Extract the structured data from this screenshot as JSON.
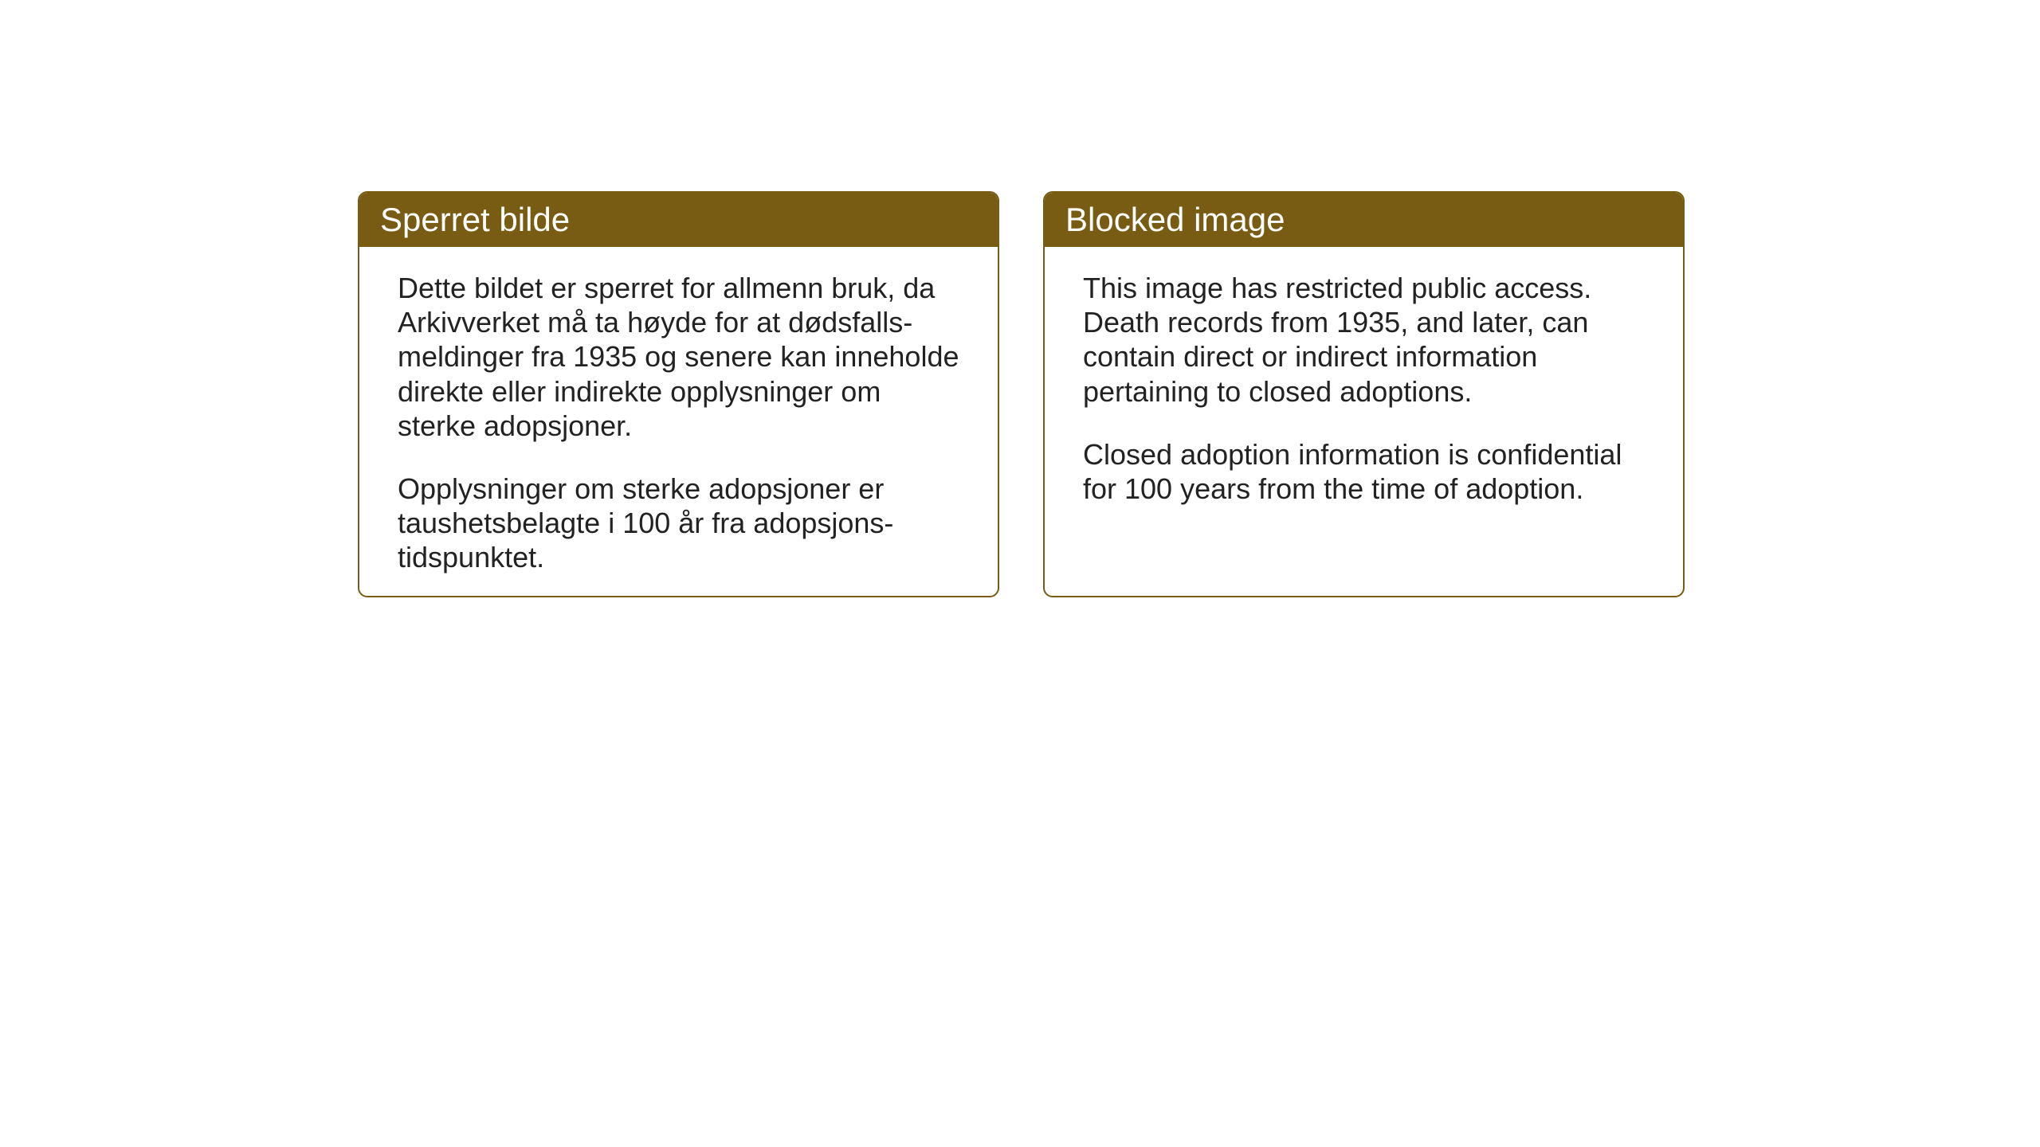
{
  "panels": {
    "left": {
      "title": "Sperret bilde",
      "paragraph1": "Dette bildet er sperret for allmenn bruk, da Arkivverket må ta høyde for at dødsfalls-meldinger fra 1935 og senere kan inneholde direkte eller indirekte opplysninger om sterke adopsjoner.",
      "paragraph2": "Opplysninger om sterke adopsjoner er taushetsbelagte i 100 år fra adopsjons-tidspunktet."
    },
    "right": {
      "title": "Blocked image",
      "paragraph1": "This image has restricted public access. Death records from 1935, and later, can contain direct or indirect information pertaining to closed adoptions.",
      "paragraph2": "Closed adoption information is confidential for 100 years from the time of adoption."
    }
  },
  "styling": {
    "header_background": "#795c13",
    "header_text_color": "#ffffff",
    "border_color": "#795c13",
    "body_text_color": "#222222",
    "page_background": "#ffffff",
    "title_fontsize": 42,
    "body_fontsize": 36,
    "border_radius": 12,
    "border_width": 2
  }
}
